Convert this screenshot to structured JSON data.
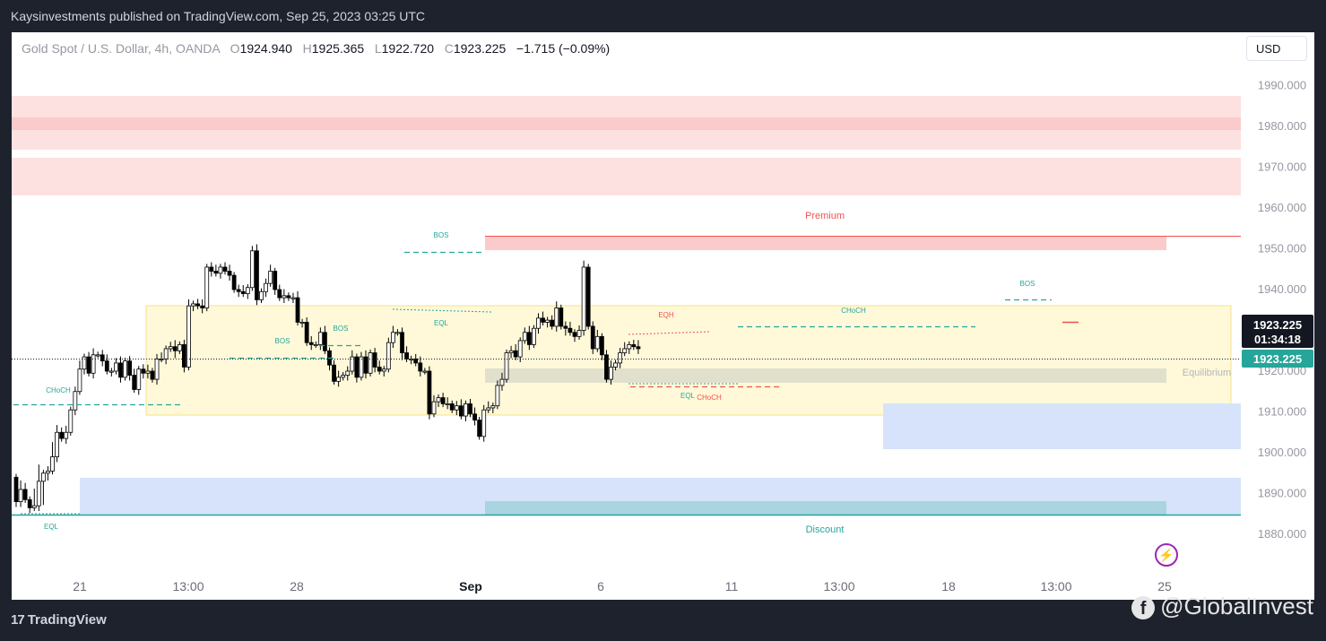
{
  "header": {
    "publisher": "Kaysinvestments published on TradingView.com, Sep 25, 2023 03:25 UTC"
  },
  "legend": {
    "symbol": "Gold Spot / U.S. Dollar, 4h, OANDA",
    "open_label": "O",
    "open": "1924.940",
    "high_label": "H",
    "high": "1925.365",
    "low_label": "L",
    "low": "1922.720",
    "close_label": "C",
    "close": "1923.225",
    "change": "−1.715 (−0.09%)"
  },
  "currency_button": "USD",
  "price_axis": {
    "ticks": [
      "1990.000",
      "1980.000",
      "1970.000",
      "1960.000",
      "1950.000",
      "1940.000",
      "1930.000",
      "1920.000",
      "1910.000",
      "1900.000",
      "1890.000",
      "1880.000"
    ],
    "current_price": "1923.225",
    "countdown": "01:34:18"
  },
  "time_axis": {
    "ticks": [
      "21",
      "13:00",
      "28",
      "Sep",
      "6",
      "11",
      "13:00",
      "18",
      "13:00",
      "25"
    ]
  },
  "zone_labels": {
    "premium": "Premium",
    "discount": "Discount",
    "equilibrium": "Equilibrium"
  },
  "footer": {
    "brand": "TradingView",
    "watermark": "@GlobalInvest"
  },
  "colors": {
    "bull": "#ffffff",
    "bear": "#000000",
    "bos_line": "#26a69a",
    "premium": "#ef5350",
    "discount_line": "#26a69a"
  },
  "chart_data": {
    "type": "candlestick",
    "title": "Gold Spot / U.S. Dollar, 4h, OANDA",
    "ylim": [
      1876,
      2001
    ],
    "price_ticks": [
      1990,
      1980,
      1970,
      1960,
      1950,
      1940,
      1930,
      1920,
      1910,
      1900,
      1890,
      1880
    ],
    "current_price": 1923.225,
    "candles": [
      1894,
      1887.5,
      1888,
      1892,
      1891,
      1889,
      1888.5,
      1887,
      1886.5,
      1890,
      1887,
      1895.5,
      1893,
      1888,
      1895,
      1894.5,
      1895.5,
      1901,
      1899,
      1906,
      1905,
      1903.5,
      1903.5,
      1904.5,
      1905,
      1910,
      1910.5,
      1914.5,
      1915,
      1921,
      1920.5,
      1923.5,
      1923.5,
      1919.5,
      1919.5,
      1924,
      1924,
      1924,
      1924,
      1922.5,
      1922.5,
      1920,
      1920,
      1920,
      1920,
      1922,
      1922,
      1918.5,
      1918.5,
      1922.5,
      1922.5,
      1919.5,
      1919,
      1915.5,
      1915.5,
      1920,
      1920.5,
      1919,
      1919.5,
      1920,
      1920,
      1918.5,
      1918,
      1923,
      1923,
      1923,
      1923,
      1925.5,
      1925.5,
      1926,
      1926,
      1924.5,
      1925,
      1926.5,
      1926.5,
      1921,
      1921,
      1936,
      1936,
      1936.5,
      1936.5,
      1936,
      1936,
      1935.5,
      1935.5,
      1945.5,
      1945.5,
      1944.5,
      1944.5,
      1944,
      1944,
      1945.5,
      1945.5,
      1944.5,
      1944.5,
      1943.5,
      1943.5,
      1940,
      1940,
      1940,
      1939.5,
      1939,
      1939,
      1940.5,
      1940.5,
      1949.5,
      1949.5,
      1937.5,
      1937.5,
      1939.5,
      1939.5,
      1941.5,
      1941.5,
      1944.5,
      1944.5,
      1940,
      1940,
      1938,
      1938,
      1938.5,
      1938.5,
      1938,
      1938,
      1938,
      1938,
      1932,
      1932,
      1932,
      1932,
      1927,
      1927,
      1926.5,
      1926.5,
      1926.5,
      1926.5,
      1929,
      1929.5,
      1925,
      1925,
      1921.5,
      1921.5,
      1917.5,
      1917.5,
      1918.5,
      1918.5,
      1919,
      1919,
      1920,
      1920,
      1923.5,
      1923.5,
      1918.5,
      1918.5,
      1923.5,
      1923.5,
      1919.5,
      1919.5,
      1924.5,
      1924.5,
      1921,
      1921,
      1920,
      1920,
      1920.5,
      1920.5,
      1927,
      1927,
      1929.5,
      1929.5,
      1929.5,
      1929.5,
      1924,
      1924.5,
      1923,
      1923,
      1923,
      1923,
      1922,
      1922,
      1920,
      1920,
      1920,
      1920,
      1909.5,
      1909.5,
      1912.5,
      1912.5,
      1913.5,
      1913.5,
      1912.5,
      1912,
      1912,
      1912,
      1910.5,
      1910.5,
      1911.5,
      1911.5,
      1909,
      1909,
      1912,
      1912,
      1909.5,
      1909.5,
      1908,
      1908,
      1904,
      1904,
      1910.5,
      1910.5,
      1911,
      1911,
      1911.5,
      1911.5,
      1916.5,
      1916.5,
      1918,
      1918,
      1924.5,
      1924.5,
      1925,
      1925,
      1923.5,
      1923.5,
      1927.5,
      1927.5,
      1929.5,
      1929.5,
      1926.5,
      1926.5,
      1930.5,
      1930.5,
      1933,
      1933,
      1932,
      1932,
      1932.5,
      1932.5,
      1931,
      1931,
      1935.5,
      1935.5,
      1931,
      1931,
      1930,
      1930.5,
      1929.5,
      1929.5,
      1928.5,
      1928.5,
      1930,
      1930,
      1945.5,
      1945.5,
      1931,
      1931,
      1925.5,
      1925.5,
      1928.5,
      1928.5,
      1924,
      1924,
      1918,
      1918,
      1921,
      1921,
      1922,
      1922,
      1924.5,
      1924.5,
      1925.5,
      1925.5,
      1926.5,
      1926.5,
      1926,
      1926,
      1925.5,
      1925.5,
      1923.5
    ],
    "annotations": [
      "CHoCH",
      "EQL",
      "BOS",
      "BOS",
      "BOS",
      "EQL",
      "EQH",
      "EQL",
      "CHoCH",
      "CHoCH",
      "BOS",
      "Premium",
      "Equilibrium",
      "Discount"
    ]
  }
}
